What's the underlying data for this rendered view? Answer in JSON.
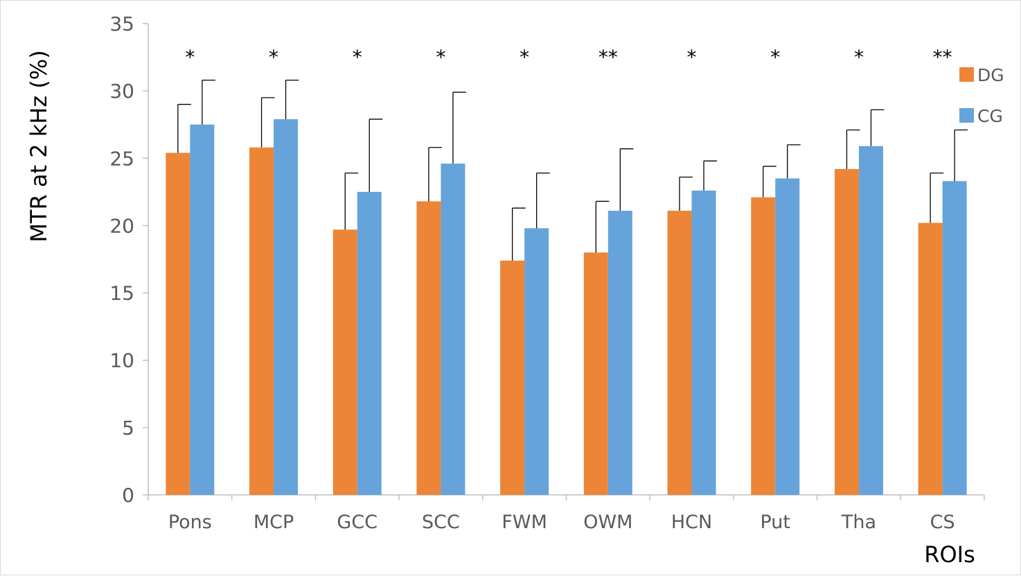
{
  "chart_data": {
    "type": "bar",
    "title": "",
    "xlabel": "ROIs",
    "ylabel": "MTR at 2 kHz (%)",
    "ylim": [
      0,
      35
    ],
    "yticks": [
      0,
      5,
      10,
      15,
      20,
      25,
      30,
      35
    ],
    "grid": false,
    "legend_position": "right",
    "categories": [
      "Pons",
      "MCP",
      "GCC",
      "SCC",
      "FWM",
      "OWM",
      "HCN",
      "Put",
      "Tha",
      "CS"
    ],
    "series": [
      {
        "name": "DG",
        "color": "#ed8536",
        "values": [
          25.4,
          25.8,
          19.7,
          21.8,
          17.4,
          18.0,
          21.1,
          22.1,
          24.2,
          20.2
        ],
        "error_upper": [
          29.0,
          29.5,
          23.9,
          25.8,
          21.3,
          21.8,
          23.6,
          24.4,
          27.1,
          23.9
        ]
      },
      {
        "name": "CG",
        "color": "#65a3da",
        "values": [
          27.5,
          27.9,
          22.5,
          24.6,
          19.8,
          21.1,
          22.6,
          23.5,
          25.9,
          23.3
        ],
        "error_upper": [
          30.8,
          30.8,
          27.9,
          29.9,
          23.9,
          25.7,
          24.8,
          26.0,
          28.6,
          27.1
        ]
      }
    ],
    "significance": [
      "*",
      "*",
      "*",
      "*",
      "*",
      "**",
      "*",
      "*",
      "*",
      "**"
    ]
  }
}
